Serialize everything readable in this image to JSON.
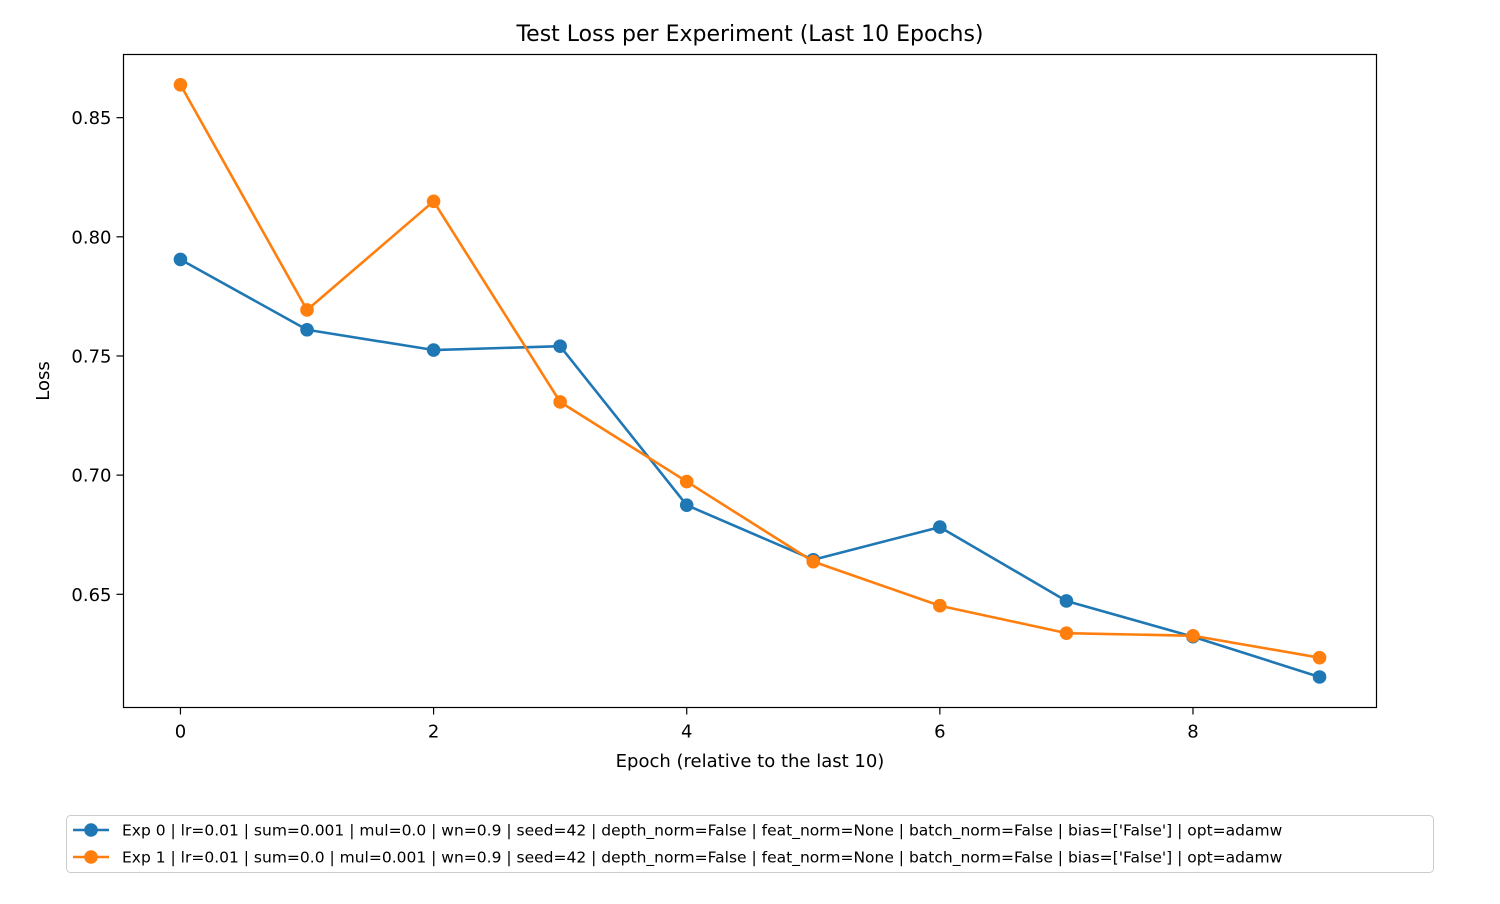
{
  "chart_data": {
    "type": "line",
    "title": "Test Loss per Experiment (Last 10 Epochs)",
    "xlabel": "Epoch (relative to the last 10)",
    "ylabel": "Loss",
    "x": [
      0,
      1,
      2,
      3,
      4,
      5,
      6,
      7,
      8,
      9
    ],
    "xlim": [
      -0.45,
      9.45
    ],
    "ylim": [
      0.6025,
      0.8765
    ],
    "xticks": [
      0,
      2,
      4,
      6,
      8
    ],
    "xtick_labels": [
      "0",
      "2",
      "4",
      "6",
      "8"
    ],
    "yticks": [
      0.65,
      0.7,
      0.75,
      0.8,
      0.85
    ],
    "ytick_labels": [
      "0.65",
      "0.70",
      "0.75",
      "0.80",
      "0.85"
    ],
    "grid": false,
    "legend_position": "bottom-center, below plot",
    "series": [
      {
        "name": "Exp 0 | lr=0.01 | sum=0.001 | mul=0.0 | wn=0.9 | seed=42 | depth_norm=False | feat_norm=None | batch_norm=False | bias=['False'] | opt=adamw",
        "color": "#1f77b4",
        "marker": "circle",
        "values": [
          0.7905,
          0.761,
          0.7525,
          0.7541,
          0.6874,
          0.6645,
          0.6782,
          0.6472,
          0.6322,
          0.6153
        ]
      },
      {
        "name": "Exp 1 | lr=0.01 | sum=0.0 | mul=0.001 | wn=0.9 | seed=42 | depth_norm=False | feat_norm=None | batch_norm=False | bias=['False'] | opt=adamw",
        "color": "#ff7f0e",
        "marker": "circle",
        "values": [
          0.8638,
          0.7693,
          0.8149,
          0.7307,
          0.6973,
          0.6637,
          0.6452,
          0.6337,
          0.6326,
          0.6234
        ]
      }
    ]
  }
}
